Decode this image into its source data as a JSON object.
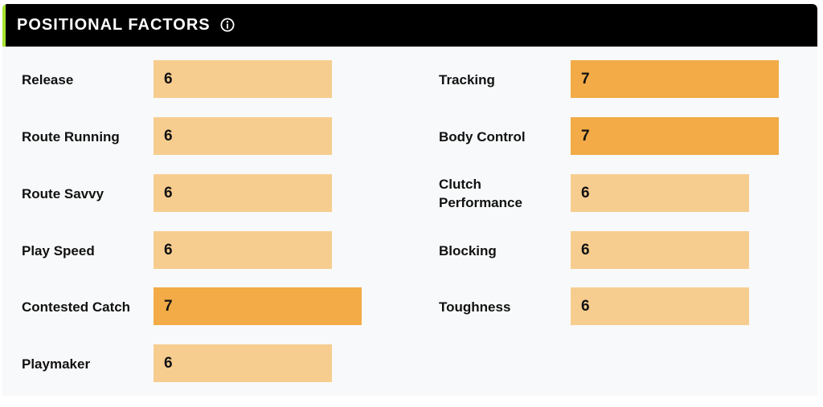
{
  "header": {
    "title": "POSITIONAL FACTORS",
    "info_icon": "info-circle-icon",
    "accent_color": "#a6e22e"
  },
  "colors": {
    "level_light": "#f7cd8f",
    "level_strong": "#f2ab46"
  },
  "factors": {
    "left": [
      {
        "label": "Release",
        "value": "6"
      },
      {
        "label": "Route Running",
        "value": "6"
      },
      {
        "label": "Route Savvy",
        "value": "6"
      },
      {
        "label": "Play Speed",
        "value": "6"
      },
      {
        "label": "Contested Catch",
        "value": "7"
      },
      {
        "label": "Playmaker",
        "value": "6"
      }
    ],
    "right": [
      {
        "label": "Tracking",
        "value": "7"
      },
      {
        "label": "Body Control",
        "value": "7"
      },
      {
        "label": "Clutch Performance",
        "value": "6"
      },
      {
        "label": "Blocking",
        "value": "6"
      },
      {
        "label": "Toughness",
        "value": "6"
      }
    ]
  }
}
